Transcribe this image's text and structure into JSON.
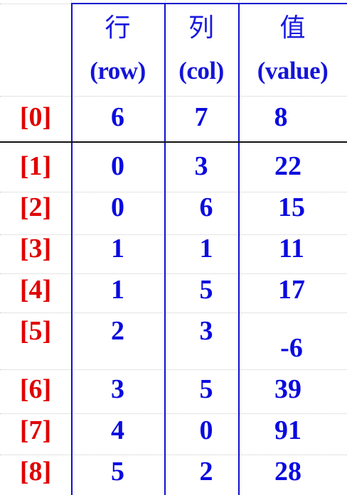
{
  "headers": {
    "row_cn": "行",
    "row_en": "(row)",
    "col_cn": "列",
    "col_en": "(col)",
    "value_cn": "值",
    "value_en": "(value)"
  },
  "rows": [
    {
      "index": "[0]",
      "row": "6",
      "col": "7",
      "value": "8"
    },
    {
      "index": "[1]",
      "row": "0",
      "col": "3",
      "value": "22"
    },
    {
      "index": "[2]",
      "row": "0",
      "col": "6",
      "value": "15"
    },
    {
      "index": "[3]",
      "row": "1",
      "col": "1",
      "value": "11"
    },
    {
      "index": "[4]",
      "row": "1",
      "col": "5",
      "value": "17"
    },
    {
      "index": "[5]",
      "row": "2",
      "col": "3",
      "value": "-6"
    },
    {
      "index": "[6]",
      "row": "3",
      "col": "5",
      "value": "39"
    },
    {
      "index": "[7]",
      "row": "4",
      "col": "0",
      "value": "91"
    },
    {
      "index": "[8]",
      "row": "5",
      "col": "2",
      "value": "28"
    }
  ],
  "colors": {
    "index": "#e00000",
    "values": "#0a0ae0",
    "header": "#1818e0",
    "rule_blue": "#1010d0"
  }
}
